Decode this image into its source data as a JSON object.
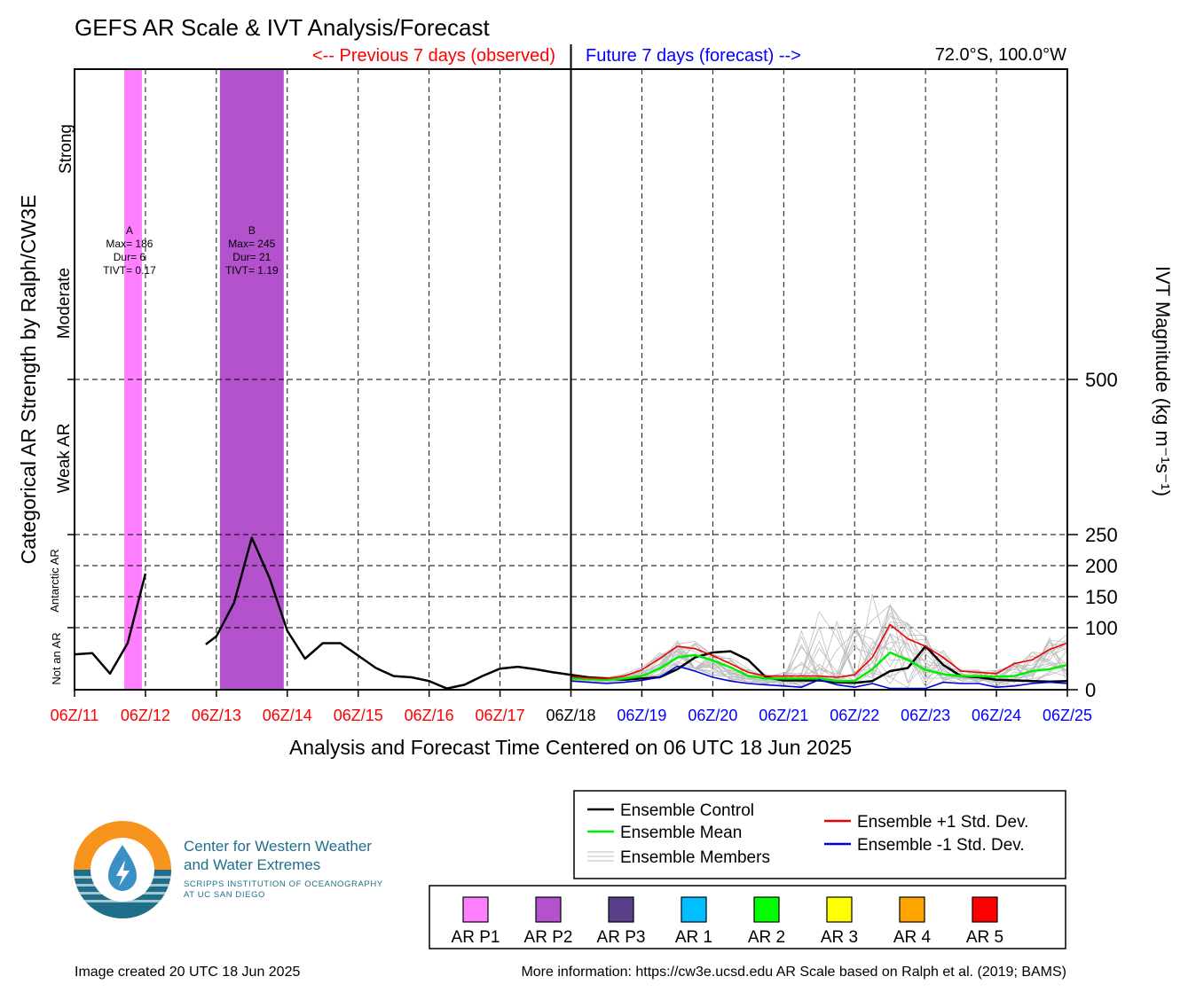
{
  "title": "GEFS AR Scale & IVT Analysis/Forecast",
  "header": {
    "previous_label": "<-- Previous 7 days (observed)",
    "future_label": "Future 7 days (forecast) -->",
    "location": "72.0°S, 100.0°W"
  },
  "colors": {
    "observed": "#ff0000",
    "forecast": "#0000ff",
    "control": "#000000",
    "mean": "#00ee00",
    "plus_std": "#ee0000",
    "minus_std": "#0000dd",
    "members": "#b8b8b8"
  },
  "chart_data": {
    "type": "line",
    "xlabel": "Analysis and Forecast Time Centered on 06 UTC 18 Jun 2025",
    "ylabel_left": "Categorical AR Strength by Ralph/CW3E",
    "ylabel_right": "IVT Magnitude (kg m⁻¹s⁻¹)",
    "x_ticks": [
      "06Z/11",
      "06Z/12",
      "06Z/13",
      "06Z/14",
      "06Z/15",
      "06Z/16",
      "06Z/17",
      "06Z/18",
      "06Z/19",
      "06Z/20",
      "06Z/21",
      "06Z/22",
      "06Z/23",
      "06Z/24",
      "06Z/25"
    ],
    "x_range_days": [
      11.25,
      25.25
    ],
    "analysis_time": "06Z/18",
    "y_right_ticks": [
      0,
      100,
      150,
      200,
      250,
      500
    ],
    "y_range": [
      0,
      1000
    ],
    "categories": [
      {
        "label": "Not an AR",
        "range": [
          0,
          100
        ]
      },
      {
        "label": "Antarctic AR",
        "range": [
          100,
          250
        ]
      },
      {
        "label": "Weak AR",
        "range": [
          250,
          500
        ]
      },
      {
        "label": "Moderate",
        "range": [
          500,
          750
        ]
      },
      {
        "label": "Strong",
        "range": [
          750,
          1000
        ]
      }
    ],
    "ar_events": [
      {
        "id": "A",
        "label_lines": [
          "A",
          "Max= 186",
          "Dur= 6",
          "TIVT= 0.17"
        ],
        "start": 11.95,
        "end": 12.2,
        "category": "AR P1",
        "color": "#ff80ff"
      },
      {
        "id": "B",
        "label_lines": [
          "B",
          "Max= 245",
          "Dur= 21",
          "TIVT= 1.19"
        ],
        "start": 13.3,
        "end": 14.2,
        "category": "AR P2",
        "color": "#b452cd"
      }
    ],
    "series": [
      {
        "name": "Ensemble Control",
        "key": "control",
        "x": [
          11.25,
          11.5,
          11.75,
          12.0,
          12.25,
          null,
          13.1,
          13.25,
          13.5,
          13.75,
          14.0,
          14.25,
          14.5,
          14.75,
          15.0,
          15.25,
          15.5,
          15.75,
          16.0,
          16.25,
          16.5,
          16.75,
          17.0,
          17.25,
          17.5,
          17.75,
          18.0,
          18.25,
          18.5,
          18.75,
          19.0,
          19.25,
          19.5,
          19.75,
          20.0,
          20.25,
          20.5,
          20.75,
          21.0,
          21.25,
          21.5,
          21.75,
          22.0,
          22.25,
          22.5,
          22.75,
          23.0,
          23.25,
          23.5,
          23.75,
          24.0,
          24.25,
          24.5,
          24.75,
          25.0,
          25.25
        ],
        "y": [
          57,
          59,
          26,
          75,
          187,
          null,
          73,
          86,
          140,
          245,
          180,
          95,
          50,
          75,
          75,
          55,
          35,
          22,
          20,
          14,
          2,
          8,
          22,
          34,
          37,
          33,
          28,
          24,
          20,
          18,
          16,
          18,
          20,
          33,
          52,
          60,
          62,
          48,
          20,
          15,
          15,
          15,
          12,
          11,
          14,
          30,
          35,
          70,
          40,
          22,
          20,
          16,
          15,
          14,
          13,
          14
        ],
        "color_key": "control"
      },
      {
        "name": "Ensemble Mean",
        "key": "mean",
        "x": [
          18.25,
          18.5,
          18.75,
          19.0,
          19.25,
          19.5,
          19.75,
          20.0,
          20.25,
          20.5,
          20.75,
          21.0,
          21.25,
          21.5,
          21.75,
          22.0,
          22.25,
          22.5,
          22.75,
          23.0,
          23.25,
          23.5,
          23.75,
          24.0,
          24.25,
          24.5,
          24.75,
          25.0,
          25.25
        ],
        "y": [
          18,
          17,
          16,
          18,
          22,
          34,
          52,
          56,
          47,
          36,
          22,
          18,
          18,
          18,
          18,
          14,
          14,
          33,
          60,
          48,
          32,
          25,
          22,
          22,
          21,
          22,
          30,
          33,
          40
        ],
        "color_key": "mean"
      },
      {
        "name": "Ensemble +1 Std. Dev.",
        "key": "plus_std",
        "x": [
          18.25,
          18.5,
          18.75,
          19.0,
          19.25,
          19.5,
          19.75,
          20.0,
          20.25,
          20.5,
          20.75,
          21.0,
          21.25,
          21.5,
          21.75,
          22.0,
          22.25,
          22.5,
          22.75,
          23.0,
          23.25,
          23.5,
          23.75,
          24.0,
          24.25,
          24.5,
          24.75,
          25.0,
          25.25
        ],
        "y": [
          21,
          19,
          18,
          22,
          32,
          50,
          70,
          66,
          55,
          42,
          28,
          22,
          22,
          22,
          22,
          20,
          24,
          52,
          105,
          82,
          70,
          52,
          30,
          28,
          26,
          42,
          48,
          65,
          75
        ],
        "color_key": "plus_std"
      },
      {
        "name": "Ensemble -1 Std. Dev.",
        "key": "minus_std",
        "x": [
          18.25,
          18.5,
          18.75,
          19.0,
          19.25,
          19.5,
          19.75,
          20.0,
          20.25,
          20.5,
          20.75,
          21.0,
          21.25,
          21.5,
          21.75,
          22.0,
          22.25,
          22.5,
          22.75,
          23.0,
          23.25,
          23.5,
          23.75,
          24.0,
          24.25,
          24.5,
          24.75,
          25.0,
          25.25
        ],
        "y": [
          14,
          12,
          10,
          12,
          15,
          20,
          38,
          30,
          20,
          14,
          10,
          8,
          6,
          4,
          16,
          8,
          4,
          10,
          2,
          2,
          2,
          12,
          10,
          10,
          4,
          6,
          10,
          12,
          10
        ],
        "color_key": "minus_std"
      }
    ],
    "legend": {
      "entries": [
        "Ensemble Control",
        "Ensemble Mean",
        "Ensemble Members",
        "Ensemble +1 Std. Dev.",
        "Ensemble -1 Std. Dev."
      ],
      "placement": "bottom-right"
    },
    "ar_scale_legend": [
      {
        "label": "AR P1",
        "color": "#ff80ff"
      },
      {
        "label": "AR P2",
        "color": "#b452cd"
      },
      {
        "label": "AR P3",
        "color": "#5a3e8a"
      },
      {
        "label": "AR 1",
        "color": "#00bfff"
      },
      {
        "label": "AR 2",
        "color": "#00ff00"
      },
      {
        "label": "AR 3",
        "color": "#ffff00"
      },
      {
        "label": "AR 4",
        "color": "#ffa500"
      },
      {
        "label": "AR 5",
        "color": "#ff0000"
      }
    ],
    "grid": true
  },
  "logo": {
    "line1": "Center for Western Weather",
    "line2": "and Water Extremes",
    "line3": "SCRIPPS INSTITUTION OF OCEANOGRAPHY",
    "line4": "AT UC SAN DIEGO"
  },
  "footer": {
    "created": "Image created 20 UTC 18 Jun 2025",
    "info": "More information: https://cw3e.ucsd.edu AR Scale based on Ralph et al. (2019; BAMS)"
  }
}
